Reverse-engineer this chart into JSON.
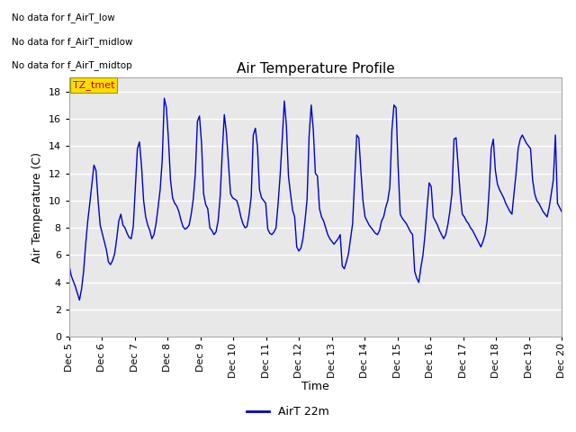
{
  "title": "Air Temperature Profile",
  "xlabel": "Time",
  "ylabel": "Air Temperature (C)",
  "line_color": "#0000CC",
  "line_width": 1.0,
  "ylim": [
    0,
    19
  ],
  "yticks": [
    0,
    2,
    4,
    6,
    8,
    10,
    12,
    14,
    16,
    18
  ],
  "background_color": "#FFFFFF",
  "plot_bg_color": "#E8E8E8",
  "grid_color": "#FFFFFF",
  "legend_label": "AirT 22m",
  "annotations": [
    "No data for f_AirT_low",
    "No data for f_AirT_midlow",
    "No data for f_AirT_midtop"
  ],
  "tz_label": "TZ_tmet",
  "tz_box_color": "#FFDD00",
  "tz_text_color": "#CC0000",
  "x_tick_labels": [
    "Dec 5",
    "Dec 6",
    "Dec 7",
    "Dec 8",
    "Dec 9",
    "Dec 10",
    "Dec 11",
    "Dec 12",
    "Dec 13",
    "Dec 14",
    "Dec 15",
    "Dec 16",
    "Dec 17",
    "Dec 18",
    "Dec 19",
    "Dec 20"
  ],
  "temperatures": [
    5.3,
    4.5,
    4.1,
    3.7,
    3.2,
    2.7,
    3.5,
    4.8,
    6.8,
    8.5,
    9.8,
    11.2,
    12.6,
    12.2,
    10.0,
    8.2,
    7.6,
    7.0,
    6.4,
    5.5,
    5.3,
    5.6,
    6.1,
    7.2,
    8.5,
    9.0,
    8.2,
    8.0,
    7.6,
    7.3,
    7.2,
    8.1,
    11.0,
    13.8,
    14.3,
    12.5,
    10.0,
    8.8,
    8.2,
    7.8,
    7.2,
    7.5,
    8.3,
    9.5,
    10.8,
    13.0,
    17.5,
    16.8,
    14.5,
    11.5,
    10.2,
    9.8,
    9.6,
    9.2,
    8.6,
    8.1,
    7.9,
    8.0,
    8.2,
    9.0,
    10.1,
    12.0,
    15.8,
    16.2,
    14.2,
    10.5,
    9.7,
    9.4,
    8.0,
    7.8,
    7.5,
    7.7,
    8.5,
    10.3,
    13.5,
    16.3,
    15.0,
    12.8,
    10.5,
    10.2,
    10.1,
    10.0,
    9.5,
    8.8,
    8.3,
    8.0,
    8.1,
    9.0,
    10.3,
    14.8,
    15.3,
    14.0,
    10.8,
    10.2,
    10.0,
    9.8,
    7.9,
    7.6,
    7.5,
    7.7,
    8.0,
    9.8,
    11.9,
    14.5,
    17.3,
    15.5,
    11.8,
    10.5,
    9.3,
    8.8,
    6.6,
    6.3,
    6.5,
    7.2,
    8.5,
    10.1,
    14.8,
    17.0,
    15.2,
    12.0,
    11.8,
    9.4,
    8.8,
    8.5,
    8.0,
    7.5,
    7.2,
    7.0,
    6.8,
    7.0,
    7.2,
    7.5,
    5.2,
    5.0,
    5.5,
    6.1,
    7.2,
    8.3,
    11.5,
    14.8,
    14.6,
    12.2,
    10.0,
    8.8,
    8.5,
    8.2,
    8.0,
    7.8,
    7.6,
    7.5,
    7.8,
    8.5,
    8.8,
    9.5,
    10.0,
    11.0,
    15.2,
    17.0,
    16.8,
    12.5,
    9.0,
    8.7,
    8.5,
    8.3,
    8.0,
    7.7,
    7.5,
    4.8,
    4.3,
    4.0,
    5.1,
    6.0,
    7.5,
    9.5,
    11.3,
    11.0,
    8.8,
    8.5,
    8.2,
    7.8,
    7.5,
    7.2,
    7.5,
    8.2,
    9.2,
    10.5,
    14.5,
    14.6,
    12.5,
    10.5,
    9.0,
    8.8,
    8.5,
    8.3,
    8.0,
    7.8,
    7.5,
    7.2,
    6.9,
    6.6,
    7.0,
    7.5,
    8.5,
    10.8,
    13.8,
    14.5,
    12.2,
    11.2,
    10.8,
    10.5,
    10.2,
    9.8,
    9.5,
    9.2,
    9.0,
    10.5,
    12.0,
    13.8,
    14.5,
    14.8,
    14.5,
    14.2,
    14.0,
    13.8,
    11.5,
    10.5,
    10.0,
    9.8,
    9.5,
    9.2,
    9.0,
    8.8,
    9.5,
    10.5,
    11.5,
    14.8,
    9.8,
    9.5,
    9.2
  ]
}
